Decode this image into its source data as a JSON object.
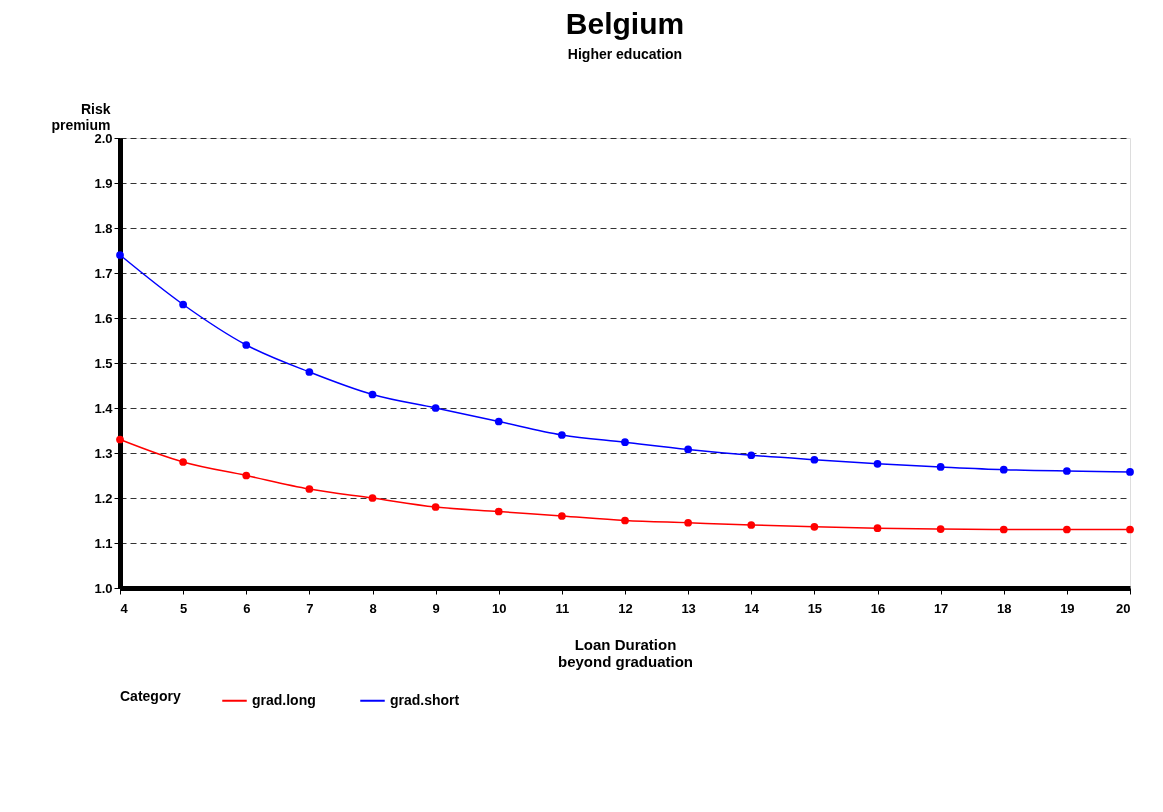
{
  "chart_data": {
    "type": "line",
    "title": "Belgium",
    "subtitle": "Higher education",
    "xlabel": "Loan Duration\nbeyond graduation",
    "ylabel": "Risk\npremium",
    "legend_title": "Category",
    "x": [
      4,
      5,
      6,
      7,
      8,
      9,
      10,
      11,
      12,
      13,
      14,
      15,
      16,
      17,
      18,
      19,
      20
    ],
    "series": [
      {
        "name": "grad.long",
        "color": "#ff0000",
        "values": [
          1.33,
          1.28,
          1.25,
          1.22,
          1.2,
          1.18,
          1.17,
          1.16,
          1.15,
          1.145,
          1.14,
          1.136,
          1.133,
          1.131,
          1.13,
          1.13,
          1.13
        ]
      },
      {
        "name": "grad.short",
        "color": "#0000ff",
        "values": [
          1.74,
          1.63,
          1.54,
          1.48,
          1.43,
          1.4,
          1.37,
          1.34,
          1.324,
          1.308,
          1.295,
          1.285,
          1.276,
          1.269,
          1.263,
          1.26,
          1.258
        ]
      }
    ],
    "xlim": [
      4,
      20
    ],
    "xticks": [
      4,
      5,
      6,
      7,
      8,
      9,
      10,
      11,
      12,
      13,
      14,
      15,
      16,
      17,
      18,
      19,
      20
    ],
    "ylim": [
      1.0,
      2.0
    ],
    "yticks": [
      {
        "value": 1.0,
        "label": "1.0"
      },
      1.1,
      1.2,
      1.3,
      1.4,
      1.5,
      1.6,
      1.7,
      1.8,
      1.9,
      {
        "value": 2.0,
        "label": "2.0"
      }
    ],
    "grid": "y",
    "legend": "bottom",
    "marker": "circle",
    "line_style": "solid"
  }
}
